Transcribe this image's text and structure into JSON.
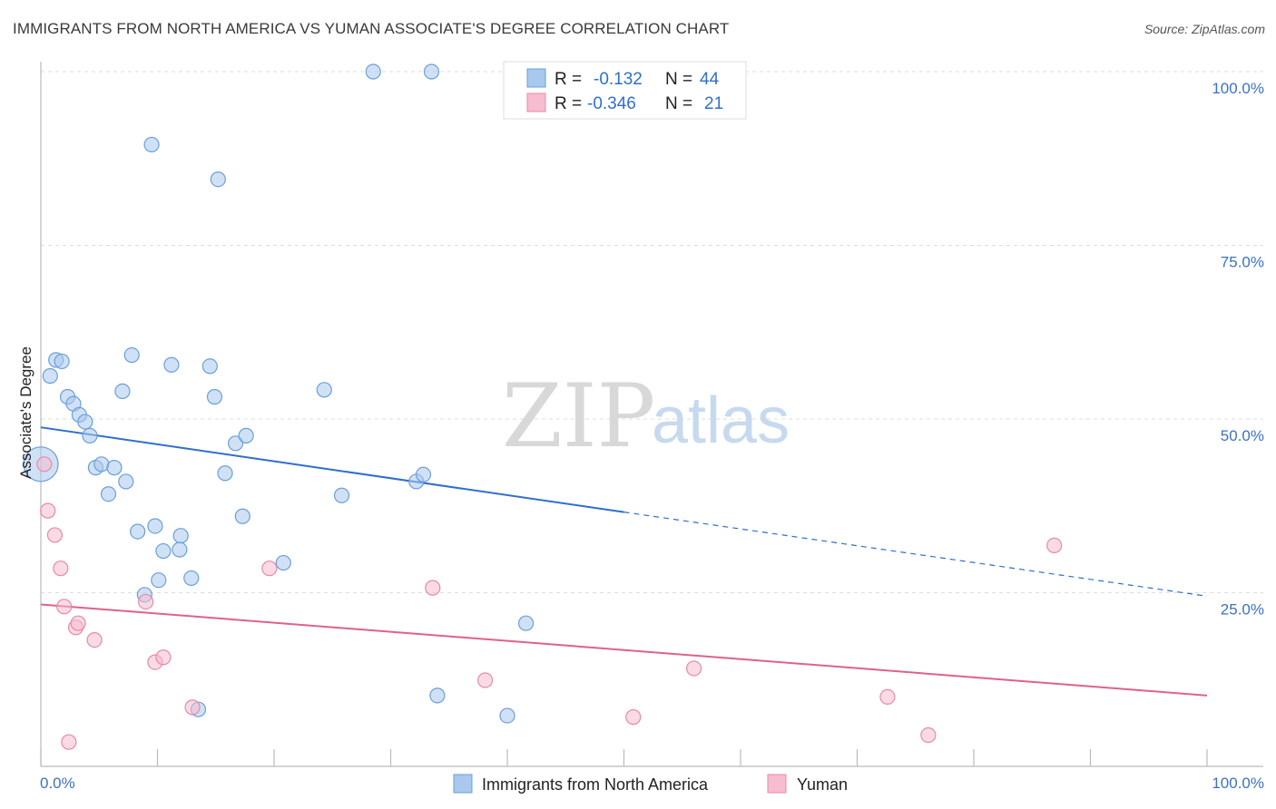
{
  "header": {
    "title": "IMMIGRANTS FROM NORTH AMERICA VS YUMAN ASSOCIATE'S DEGREE CORRELATION CHART",
    "source": "Source: ZipAtlas.com"
  },
  "watermark": {
    "zip": "ZIP",
    "atlas": "atlas"
  },
  "colors": {
    "blue_fill": "#a9c8ee",
    "blue_stroke": "#6a9fd8",
    "blue_line": "#2f6fcb",
    "pink_fill": "#f6bcd0",
    "pink_stroke": "#e58aa8",
    "pink_line": "#e0608f",
    "grid": "#dddddd",
    "tick_text": "#3a72c4"
  },
  "legend": {
    "r_label": "R =",
    "n_label": "N =",
    "series": [
      {
        "r": "-0.132",
        "n": "44"
      },
      {
        "r": "-0.346",
        "n": "21"
      }
    ]
  },
  "chart_data": {
    "type": "scatter",
    "title": "IMMIGRANTS FROM NORTH AMERICA VS YUMAN ASSOCIATE'S DEGREE CORRELATION CHART",
    "xlabel": "",
    "ylabel": "Associate's Degree",
    "xlim": [
      0,
      100
    ],
    "ylim": [
      0,
      100
    ],
    "x_tick_labels": [
      "0.0%",
      "100.0%"
    ],
    "y_ticks": [
      25,
      50,
      75,
      100
    ],
    "y_tick_labels": [
      "25.0%",
      "50.0%",
      "75.0%",
      "100.0%"
    ],
    "grid": true,
    "series": [
      {
        "name": "Immigrants from North America",
        "color": "#a9c8ee",
        "r": -0.132,
        "n": 44,
        "trend": {
          "x0": 0,
          "y0": 48.8,
          "x1": 50,
          "y1": 36.6,
          "dash_to_x": 100,
          "dash_to_y": 24.5
        },
        "points": [
          [
            28.5,
            100
          ],
          [
            33.5,
            100
          ],
          [
            9.5,
            89.5
          ],
          [
            15.2,
            84.5
          ],
          [
            1.3,
            58.5
          ],
          [
            1.8,
            58.3
          ],
          [
            7.8,
            59.2
          ],
          [
            11.2,
            57.8
          ],
          [
            14.5,
            57.6
          ],
          [
            0.8,
            56.2
          ],
          [
            2.3,
            53.2
          ],
          [
            2.8,
            52.2
          ],
          [
            7.0,
            54.0
          ],
          [
            14.9,
            53.2
          ],
          [
            24.3,
            54.2
          ],
          [
            3.3,
            50.6
          ],
          [
            3.8,
            49.6
          ],
          [
            4.2,
            47.6
          ],
          [
            16.7,
            46.5
          ],
          [
            17.6,
            47.6
          ],
          [
            0.0,
            43.5
          ],
          [
            4.7,
            43.0
          ],
          [
            5.2,
            43.5
          ],
          [
            6.3,
            43.0
          ],
          [
            7.3,
            41.0
          ],
          [
            15.8,
            42.2
          ],
          [
            5.8,
            39.2
          ],
          [
            25.8,
            39.0
          ],
          [
            32.2,
            41.0
          ],
          [
            32.8,
            42.0
          ],
          [
            17.3,
            36.0
          ],
          [
            8.3,
            33.8
          ],
          [
            9.8,
            34.6
          ],
          [
            12.0,
            33.2
          ],
          [
            10.5,
            31.0
          ],
          [
            11.9,
            31.2
          ],
          [
            20.8,
            29.3
          ],
          [
            10.1,
            26.8
          ],
          [
            12.9,
            27.1
          ],
          [
            8.9,
            24.7
          ],
          [
            41.6,
            20.6
          ],
          [
            34.0,
            10.2
          ],
          [
            40.0,
            7.3
          ],
          [
            13.5,
            8.2
          ]
        ]
      },
      {
        "name": "Yuman",
        "color": "#f6bcd0",
        "r": -0.346,
        "n": 21,
        "trend": {
          "x0": 0,
          "y0": 23.3,
          "x1": 100,
          "y1": 10.2
        },
        "points": [
          [
            0.3,
            43.5
          ],
          [
            0.6,
            36.8
          ],
          [
            1.2,
            33.3
          ],
          [
            1.7,
            28.5
          ],
          [
            2.0,
            23.0
          ],
          [
            3.0,
            20.0
          ],
          [
            3.2,
            20.6
          ],
          [
            4.6,
            18.2
          ],
          [
            9.0,
            23.7
          ],
          [
            9.8,
            15.0
          ],
          [
            10.5,
            15.7
          ],
          [
            13.0,
            8.5
          ],
          [
            19.6,
            28.5
          ],
          [
            33.6,
            25.7
          ],
          [
            38.1,
            12.4
          ],
          [
            50.8,
            7.1
          ],
          [
            56.0,
            14.1
          ],
          [
            72.6,
            10.0
          ],
          [
            76.1,
            4.5
          ],
          [
            86.9,
            31.8
          ],
          [
            2.4,
            3.5
          ]
        ]
      }
    ]
  }
}
